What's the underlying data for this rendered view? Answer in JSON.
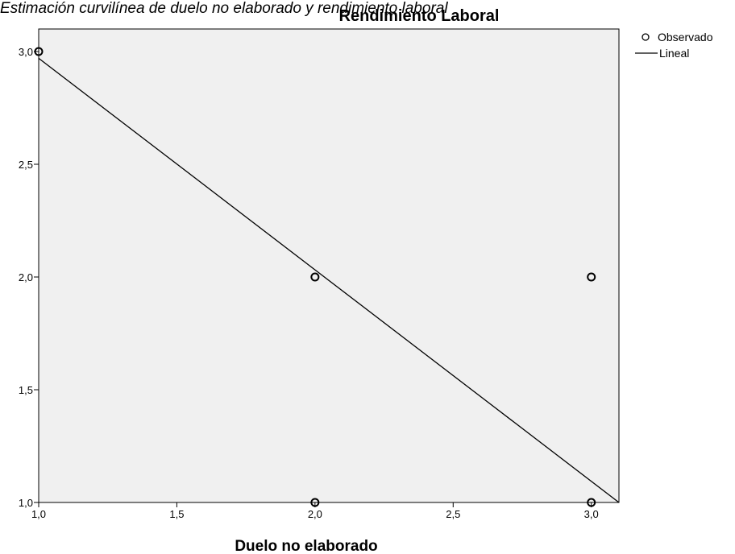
{
  "caption": "Estimación curvilínea de duelo no elaborado y rendimiento laboral",
  "chart_data": {
    "type": "scatter",
    "title": "Rendimiento Laboral",
    "xlabel": "Duelo no elaborado",
    "ylabel": "",
    "xlim": [
      1.0,
      3.1
    ],
    "ylim": [
      1.0,
      3.1
    ],
    "x_ticks": [
      1.0,
      1.5,
      2.0,
      2.5,
      3.0
    ],
    "x_tick_labels": [
      "1,0",
      "1,5",
      "2,0",
      "2,5",
      "3,0"
    ],
    "y_ticks": [
      1.0,
      1.5,
      2.0,
      2.5,
      3.0
    ],
    "y_tick_labels": [
      "1,0",
      "1,5",
      "2,0",
      "2,5",
      "3,0"
    ],
    "grid": false,
    "legend_position": "top-right",
    "background_color": "#f0f0f0",
    "series": [
      {
        "name": "Observado",
        "marker": "open-circle",
        "points": [
          {
            "x": 1.0,
            "y": 3.0
          },
          {
            "x": 2.0,
            "y": 2.0
          },
          {
            "x": 2.0,
            "y": 1.0
          },
          {
            "x": 3.0,
            "y": 2.0
          },
          {
            "x": 3.0,
            "y": 1.0
          }
        ]
      },
      {
        "name": "Lineal",
        "type": "line",
        "points": [
          {
            "x": 1.0,
            "y": 2.97
          },
          {
            "x": 3.1,
            "y": 1.0
          }
        ]
      }
    ]
  }
}
